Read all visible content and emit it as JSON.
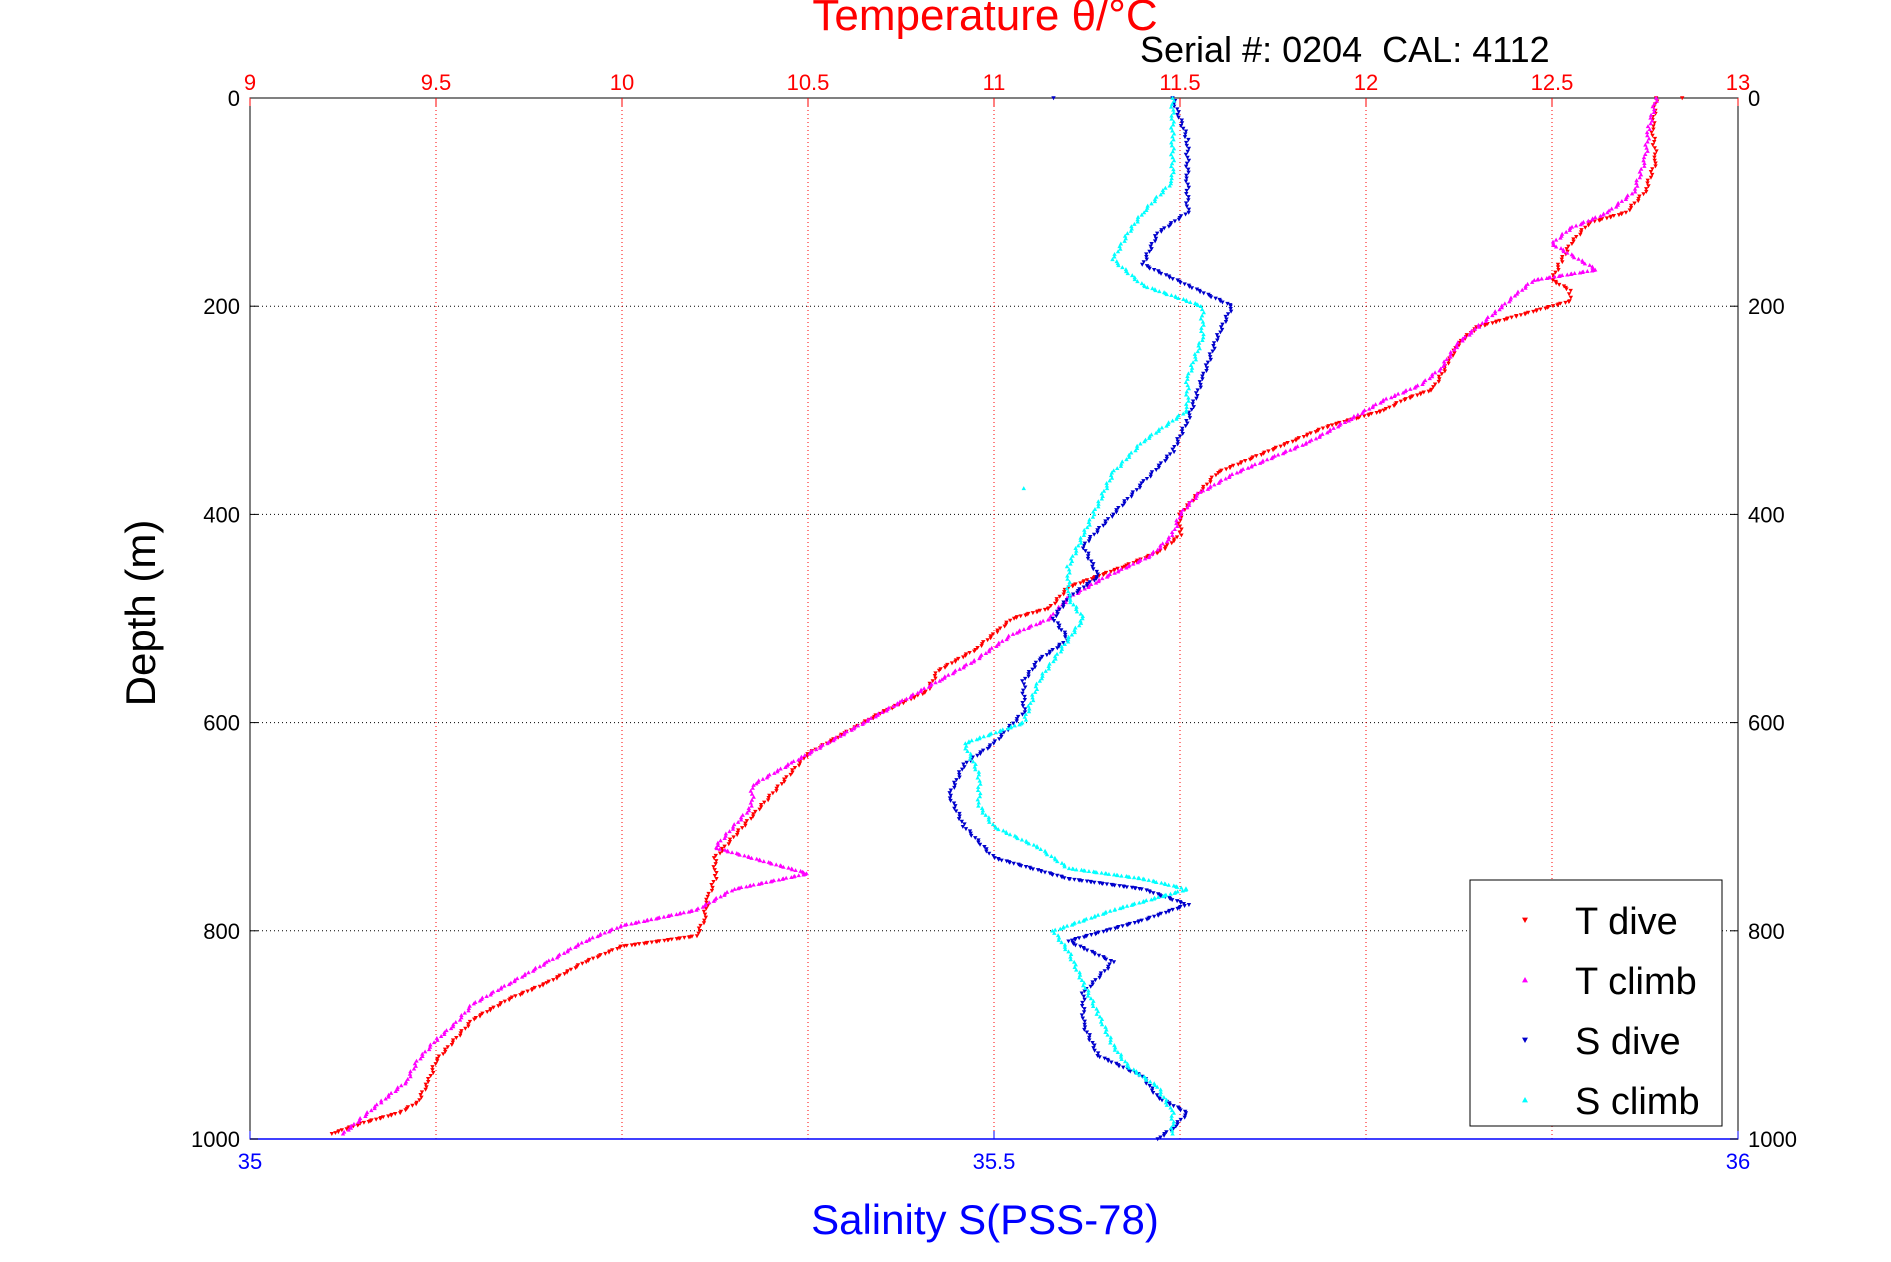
{
  "chart_data": {
    "type": "scatter",
    "title": "Temperature θ/°C",
    "subtitle": "Serial #: 0204  CAL: 4112",
    "ylabel": "Depth (m)",
    "xlabel": "Salinity S(PSS-78)",
    "y_axis": {
      "range": [
        0,
        1000
      ],
      "reversed": true,
      "ticks": [
        "0",
        "200",
        "400",
        "600",
        "800",
        "1000"
      ]
    },
    "x_top_temperature": {
      "range": [
        9,
        13
      ],
      "ticks": [
        "9",
        "9.5",
        "10",
        "10.5",
        "11",
        "11.5",
        "12",
        "12.5",
        "13"
      ],
      "color": "#ff0000"
    },
    "x_bottom_salinity": {
      "range": [
        35,
        36
      ],
      "ticks": [
        "35",
        "35.5",
        "36"
      ],
      "color": "#0000ff"
    },
    "grid": true,
    "legend_position": "bottom-right",
    "series": [
      {
        "name": "T dive",
        "axis": "temperature",
        "color": "#ff0000",
        "marker": "triangle-down",
        "points": [
          [
            12.78,
            0
          ],
          [
            12.77,
            30
          ],
          [
            12.78,
            60
          ],
          [
            12.75,
            90
          ],
          [
            12.7,
            110
          ],
          [
            12.6,
            120
          ],
          [
            12.55,
            140
          ],
          [
            12.52,
            160
          ],
          [
            12.5,
            175
          ],
          [
            12.55,
            185
          ],
          [
            12.55,
            195
          ],
          [
            12.4,
            210
          ],
          [
            12.3,
            220
          ],
          [
            12.25,
            235
          ],
          [
            12.22,
            255
          ],
          [
            12.18,
            280
          ],
          [
            12.1,
            290
          ],
          [
            12.05,
            300
          ],
          [
            11.9,
            315
          ],
          [
            11.8,
            330
          ],
          [
            11.7,
            345
          ],
          [
            11.6,
            360
          ],
          [
            11.55,
            380
          ],
          [
            11.5,
            400
          ],
          [
            11.5,
            420
          ],
          [
            11.45,
            435
          ],
          [
            11.35,
            450
          ],
          [
            11.2,
            470
          ],
          [
            11.15,
            490
          ],
          [
            11.05,
            500
          ],
          [
            11.0,
            515
          ],
          [
            10.95,
            530
          ],
          [
            10.85,
            550
          ],
          [
            10.82,
            570
          ],
          [
            10.7,
            590
          ],
          [
            10.6,
            610
          ],
          [
            10.5,
            630
          ],
          [
            10.45,
            650
          ],
          [
            10.4,
            670
          ],
          [
            10.35,
            690
          ],
          [
            10.3,
            710
          ],
          [
            10.25,
            730
          ],
          [
            10.25,
            750
          ],
          [
            10.23,
            770
          ],
          [
            10.22,
            790
          ],
          [
            10.2,
            805
          ],
          [
            10.0,
            815
          ],
          [
            9.9,
            830
          ],
          [
            9.8,
            850
          ],
          [
            9.7,
            865
          ],
          [
            9.6,
            885
          ],
          [
            9.55,
            905
          ],
          [
            9.5,
            925
          ],
          [
            9.48,
            945
          ],
          [
            9.45,
            965
          ],
          [
            9.4,
            975
          ],
          [
            9.3,
            985
          ],
          [
            9.22,
            995
          ]
        ]
      },
      {
        "name": "T climb",
        "axis": "temperature",
        "color": "#ff00ff",
        "marker": "triangle-up",
        "points": [
          [
            12.78,
            0
          ],
          [
            12.76,
            30
          ],
          [
            12.75,
            60
          ],
          [
            12.72,
            90
          ],
          [
            12.65,
            110
          ],
          [
            12.55,
            125
          ],
          [
            12.5,
            140
          ],
          [
            12.62,
            165
          ],
          [
            12.45,
            175
          ],
          [
            12.4,
            190
          ],
          [
            12.35,
            205
          ],
          [
            12.3,
            220
          ],
          [
            12.25,
            235
          ],
          [
            12.2,
            260
          ],
          [
            12.15,
            275
          ],
          [
            12.05,
            290
          ],
          [
            11.95,
            310
          ],
          [
            11.85,
            330
          ],
          [
            11.75,
            345
          ],
          [
            11.65,
            360
          ],
          [
            11.55,
            380
          ],
          [
            11.5,
            400
          ],
          [
            11.48,
            420
          ],
          [
            11.42,
            440
          ],
          [
            11.3,
            460
          ],
          [
            11.2,
            480
          ],
          [
            11.15,
            500
          ],
          [
            11.05,
            515
          ],
          [
            10.95,
            540
          ],
          [
            10.85,
            560
          ],
          [
            10.75,
            580
          ],
          [
            10.65,
            600
          ],
          [
            10.55,
            620
          ],
          [
            10.45,
            640
          ],
          [
            10.35,
            660
          ],
          [
            10.35,
            680
          ],
          [
            10.3,
            700
          ],
          [
            10.25,
            720
          ],
          [
            10.5,
            745
          ],
          [
            10.3,
            760
          ],
          [
            10.2,
            780
          ],
          [
            10.0,
            795
          ],
          [
            9.9,
            810
          ],
          [
            9.8,
            830
          ],
          [
            9.7,
            850
          ],
          [
            9.6,
            870
          ],
          [
            9.55,
            890
          ],
          [
            9.5,
            905
          ],
          [
            9.45,
            925
          ],
          [
            9.42,
            945
          ],
          [
            9.35,
            965
          ],
          [
            9.3,
            980
          ],
          [
            9.25,
            995
          ]
        ]
      },
      {
        "name": "S dive",
        "axis": "salinity",
        "color": "#0000cc",
        "marker": "triangle-down",
        "points": [
          [
            35.62,
            0
          ],
          [
            35.63,
            40
          ],
          [
            35.63,
            80
          ],
          [
            35.63,
            110
          ],
          [
            35.61,
            130
          ],
          [
            35.6,
            160
          ],
          [
            35.63,
            180
          ],
          [
            35.66,
            200
          ],
          [
            35.65,
            230
          ],
          [
            35.64,
            270
          ],
          [
            35.63,
            310
          ],
          [
            35.62,
            340
          ],
          [
            35.6,
            370
          ],
          [
            35.58,
            400
          ],
          [
            35.56,
            430
          ],
          [
            35.57,
            460
          ],
          [
            35.55,
            480
          ],
          [
            35.54,
            500
          ],
          [
            35.55,
            520
          ],
          [
            35.53,
            540
          ],
          [
            35.52,
            560
          ],
          [
            35.52,
            590
          ],
          [
            35.5,
            620
          ],
          [
            35.48,
            640
          ],
          [
            35.47,
            670
          ],
          [
            35.48,
            700
          ],
          [
            35.5,
            730
          ],
          [
            35.55,
            750
          ],
          [
            35.6,
            760
          ],
          [
            35.63,
            775
          ],
          [
            35.6,
            790
          ],
          [
            35.55,
            810
          ],
          [
            35.58,
            830
          ],
          [
            35.56,
            860
          ],
          [
            35.56,
            890
          ],
          [
            35.57,
            920
          ],
          [
            35.6,
            940
          ],
          [
            35.61,
            960
          ],
          [
            35.63,
            975
          ],
          [
            35.62,
            990
          ],
          [
            35.61,
            1000
          ]
        ]
      },
      {
        "name": "S climb",
        "axis": "salinity",
        "color": "#00ffff",
        "marker": "triangle-up",
        "points": [
          [
            35.62,
            0
          ],
          [
            35.62,
            40
          ],
          [
            35.62,
            80
          ],
          [
            35.6,
            110
          ],
          [
            35.59,
            130
          ],
          [
            35.58,
            155
          ],
          [
            35.6,
            180
          ],
          [
            35.64,
            200
          ],
          [
            35.64,
            230
          ],
          [
            35.63,
            270
          ],
          [
            35.63,
            300
          ],
          [
            35.6,
            330
          ],
          [
            35.58,
            360
          ],
          [
            35.57,
            390
          ],
          [
            35.56,
            420
          ],
          [
            35.55,
            450
          ],
          [
            35.55,
            480
          ],
          [
            35.56,
            500
          ],
          [
            35.55,
            520
          ],
          [
            35.53,
            560
          ],
          [
            35.52,
            600
          ],
          [
            35.48,
            620
          ],
          [
            35.49,
            650
          ],
          [
            35.49,
            680
          ],
          [
            35.5,
            700
          ],
          [
            35.53,
            720
          ],
          [
            35.55,
            740
          ],
          [
            35.6,
            750
          ],
          [
            35.63,
            760
          ],
          [
            35.58,
            780
          ],
          [
            35.54,
            800
          ],
          [
            35.55,
            820
          ],
          [
            35.56,
            850
          ],
          [
            35.57,
            880
          ],
          [
            35.58,
            910
          ],
          [
            35.59,
            930
          ],
          [
            35.61,
            950
          ],
          [
            35.62,
            975
          ],
          [
            35.62,
            995
          ]
        ]
      }
    ],
    "outliers": [
      {
        "series": "S climb",
        "point": [
          35.52,
          375
        ]
      },
      {
        "series": "S dive",
        "point": [
          35.54,
          0
        ]
      },
      {
        "series": "T dive",
        "point": [
          12.85,
          0
        ]
      }
    ]
  }
}
